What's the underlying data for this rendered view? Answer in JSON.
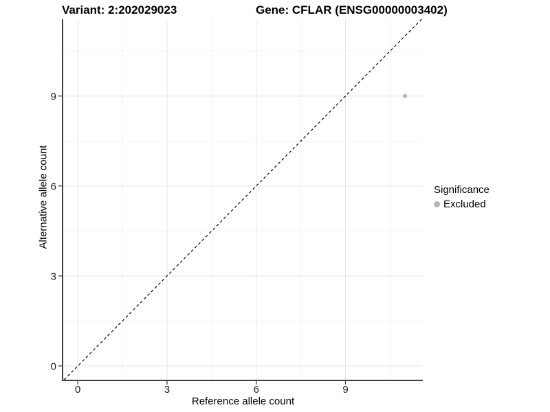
{
  "titles": {
    "variant": "Variant: 2:202029023",
    "gene": "Gene: CFLAR (ENSG00000003402)"
  },
  "legend": {
    "title": "Significance",
    "items": [
      {
        "label": "Excluded",
        "color": "#b5b5b5"
      }
    ]
  },
  "colors": {
    "background": "#ffffff",
    "grid_major": "#e5e5e5",
    "grid_minor": "#f2f2f2",
    "axis_line": "#404040",
    "tick_text": "#1a1a1a",
    "title_text": "#000000",
    "point": "#bdbdbd",
    "identity_line": "#000000"
  },
  "chart_data": {
    "type": "scatter",
    "title": "Variant: 2:202029023   Gene: CFLAR (ENSG00000003402)",
    "xlabel": "Reference allele count",
    "ylabel": "Alternative allele count",
    "xlim": [
      -0.49,
      11.6
    ],
    "ylim": [
      -0.46,
      11.56
    ],
    "x_ticks": [
      0,
      3,
      6,
      9
    ],
    "y_ticks": [
      0,
      3,
      6,
      9
    ],
    "x_minor_ticks": [
      1.5,
      4.5,
      7.5,
      10.5
    ],
    "y_minor_ticks": [
      1.5,
      4.5,
      7.5,
      10.5
    ],
    "grid": true,
    "legend_position": "right",
    "legend_title": "Significance",
    "series": [
      {
        "name": "Excluded",
        "color": "#bdbdbd",
        "points": [
          {
            "x": 11,
            "y": 9
          }
        ]
      }
    ],
    "reference_line": {
      "kind": "identity y=x",
      "style": "dashed",
      "color": "#000000"
    }
  }
}
